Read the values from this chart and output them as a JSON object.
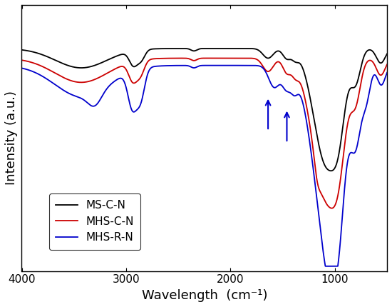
{
  "title": "",
  "xlabel": "Wavelength  (cm⁻¹)",
  "ylabel": "Intensity (a.u.)",
  "xlim": [
    4000,
    500
  ],
  "legend_labels": [
    "MS-C-N",
    "MHS-C-N",
    "MHS-R-N"
  ],
  "colors": [
    "#000000",
    "#cc0000",
    "#0000cc"
  ],
  "xticks": [
    4000,
    3000,
    2000,
    1000
  ],
  "background_color": "#ffffff"
}
